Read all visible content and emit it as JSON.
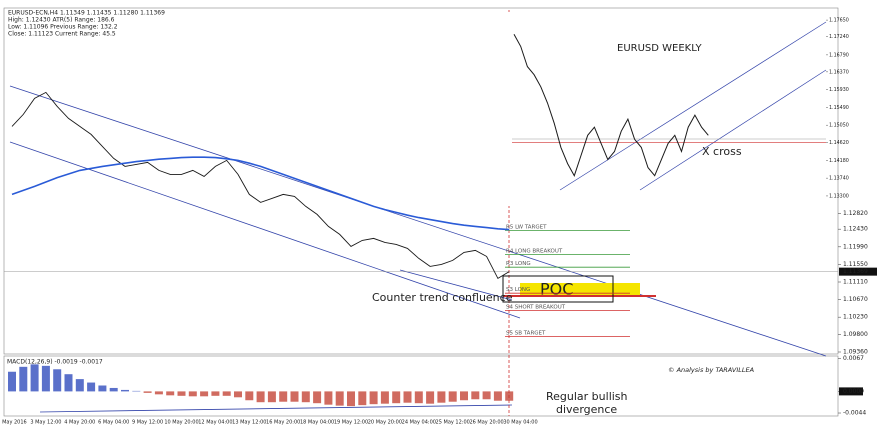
{
  "chart_data": [
    {
      "type": "line",
      "header": [
        "EURUSD-ECN,H4 1.11349 1.11435 1.11280 1.11369",
        "High: 1.12430 ATR(5) Range: 186.6",
        "Low: 1.11096 Previous Range: 132.2",
        "Close: 1.11123 Current Range: 45.5"
      ],
      "categories": [
        "2 May 2016",
        null,
        null,
        "3 May 12:00",
        null,
        null,
        "4 May 20:00",
        null,
        null,
        "6 May 04:00",
        null,
        null,
        "9 May 12:00",
        null,
        null,
        "10 May 20:00",
        null,
        null,
        "12 May 04:00",
        null,
        null,
        "13 May 12:00",
        null,
        null,
        "16 May 20:00",
        null,
        null,
        "18 May 04:00",
        null,
        null,
        "19 May 12:00",
        null,
        null,
        "20 May 20:00",
        null,
        null,
        "24 May 04:00",
        null,
        null,
        "25 May 12:00",
        null,
        null,
        "26 May 20:00",
        null,
        null,
        "30 May 04:00",
        null,
        null
      ],
      "series": [
        {
          "color": "#1a1a1a",
          "values": [
            1.15,
            1.153,
            1.157,
            1.1585,
            1.155,
            1.152,
            1.15,
            1.148,
            1.145,
            1.142,
            1.14,
            1.1405,
            1.141,
            1.139,
            1.138,
            1.138,
            1.139,
            1.1375,
            1.14,
            1.1415,
            1.138,
            1.133,
            1.131,
            1.132,
            1.133,
            1.1325,
            1.13,
            1.128,
            1.125,
            1.123,
            1.12,
            1.1215,
            1.122,
            1.121,
            1.1205,
            1.1195,
            1.117,
            1.115,
            1.1155,
            1.1165,
            1.1185,
            1.119,
            1.1175,
            1.112,
            1.1137,
            null,
            null,
            null
          ]
        },
        {
          "color": "#2a5bd7",
          "values": [
            1.133,
            1.134,
            1.135,
            1.1361,
            1.1372,
            1.1381,
            1.139,
            1.1395,
            1.14,
            1.1404,
            1.1408,
            1.1412,
            1.1415,
            1.1418,
            1.142,
            1.1422,
            1.1423,
            1.1423,
            1.1422,
            1.1419,
            1.1415,
            1.1408,
            1.14,
            1.139,
            1.138,
            1.137,
            1.136,
            1.135,
            1.134,
            1.133,
            1.132,
            1.131,
            1.13,
            1.1292,
            1.1285,
            1.1278,
            1.1272,
            1.1267,
            1.1262,
            1.1257,
            1.1253,
            1.125,
            1.1247,
            1.1244,
            1.1242,
            null,
            null,
            null
          ]
        }
      ],
      "ylim": [
        1.0936,
        1.1796
      ],
      "yticks": [
        {
          "value": 1.1282,
          "label": "1.12820"
        },
        {
          "value": 1.1243,
          "label": "1.12430"
        },
        {
          "value": 1.1199,
          "label": "1.11990"
        },
        {
          "value": 1.1155,
          "label": "1.11550"
        },
        {
          "value": 1.1111,
          "label": "1.11110"
        },
        {
          "value": 1.1067,
          "label": "1.10670"
        },
        {
          "value": 1.1023,
          "label": "1.10230"
        },
        {
          "value": 1.098,
          "label": "1.09800"
        },
        {
          "value": 1.0936,
          "label": "1.09360"
        }
      ],
      "current_price": {
        "value": 1.11369,
        "label": "1.11369"
      },
      "levels": [
        {
          "label": "R5 LW TARGET",
          "value": 1.124,
          "color": "#3a9a3a"
        },
        {
          "label": "R4 LONG BREAKOUT",
          "value": 1.118,
          "color": "#3a9a3a"
        },
        {
          "label": "R3 LONG",
          "value": 1.1148,
          "color": "#3a9a3a"
        },
        {
          "label": "S3 LONG",
          "value": 1.1083,
          "color": "#d03030"
        },
        {
          "label": "S4 SHORT BREAKOUT",
          "value": 1.104,
          "color": "#d03030"
        },
        {
          "label": "S5 SB TARGET",
          "value": 1.0975,
          "color": "#d03030"
        }
      ],
      "poc": "POC",
      "annotation": "Counter trend confluence",
      "signature": "© Analysis by TARAVILLEA"
    },
    {
      "type": "bar",
      "title": "MACD(12,26,9) -0.0019 -0.0017",
      "values": [
        0.004,
        0.005,
        0.0055,
        0.0052,
        0.0045,
        0.0035,
        0.0025,
        0.0018,
        0.0012,
        0.0007,
        0.0003,
        0.0001,
        -0.0003,
        -0.0006,
        -0.0008,
        -0.0009,
        -0.001,
        -0.001,
        -0.0009,
        -0.0009,
        -0.0012,
        -0.0018,
        -0.0022,
        -0.0022,
        -0.0021,
        -0.0021,
        -0.0022,
        -0.0024,
        -0.0027,
        -0.0029,
        -0.003,
        -0.0028,
        -0.0026,
        -0.0025,
        -0.0024,
        -0.0023,
        -0.0024,
        -0.0025,
        -0.0023,
        -0.0021,
        -0.0018,
        -0.0016,
        -0.0016,
        -0.0019,
        -0.0019,
        null,
        null,
        null
      ],
      "colors": [
        "#2340b8",
        "#c0392b"
      ],
      "ylim": [
        -0.0046,
        0.007
      ],
      "yticks": [
        0.0067,
        {
          "value": 0,
          "label": "0.0000"
        },
        -0.0044
      ],
      "annotation": [
        "Regular bullish",
        "divergence"
      ]
    },
    {
      "type": "line",
      "title": "EURUSD WEEKLY",
      "values": [
        1.173,
        1.17,
        1.165,
        1.163,
        1.16,
        1.156,
        1.151,
        1.145,
        1.141,
        1.138,
        1.143,
        1.148,
        1.15,
        1.146,
        1.142,
        1.144,
        1.149,
        1.152,
        1.147,
        1.145,
        1.14,
        1.138,
        1.142,
        1.146,
        1.148,
        1.144,
        1.15,
        1.153,
        1.15,
        1.148
      ],
      "color": "#1a1a1a",
      "level": {
        "value": 1.1462,
        "color": "#d03030"
      },
      "ylim": [
        1.1315,
        1.179
      ],
      "yticks": [
        {
          "value": 1.1765,
          "label": "1.17650"
        },
        {
          "value": 1.1724,
          "label": "1.17240"
        },
        {
          "value": 1.1679,
          "label": "1.16790"
        },
        {
          "value": 1.1637,
          "label": "1.16370"
        },
        {
          "value": 1.1593,
          "label": "1.15930"
        },
        {
          "value": 1.1549,
          "label": "1.15490"
        },
        {
          "value": 1.1505,
          "label": "1.15050"
        },
        {
          "value": 1.1462,
          "label": "1.14620"
        },
        {
          "value": 1.1418,
          "label": "1.14180"
        },
        {
          "value": 1.1374,
          "label": "1.13740"
        },
        {
          "value": 1.133,
          "label": "1.13300"
        }
      ],
      "annotation": "X cross"
    }
  ]
}
